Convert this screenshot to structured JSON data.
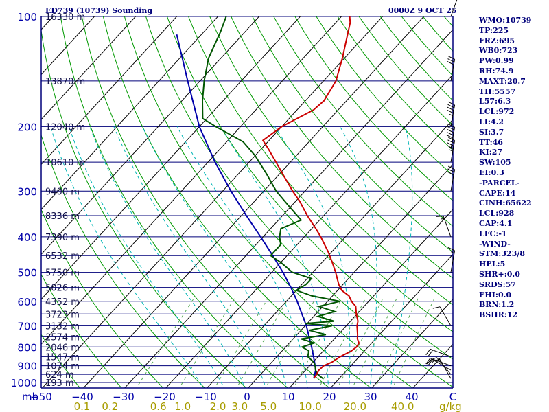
{
  "chart_data": {
    "type": "line",
    "title_left": "ED739 (10739) Sounding",
    "title_right": "0000Z  9 OCT 25",
    "pressure_axis_label": "mb",
    "pressure_ticks": [
      100,
      200,
      300,
      400,
      500,
      600,
      700,
      800,
      900,
      1000
    ],
    "temperature_ticks": [
      -50,
      -40,
      -30,
      -20,
      -10,
      0,
      10,
      20,
      30,
      40
    ],
    "mixing_ratio_unit": "g/kg",
    "mixing_ratio_ticks": [
      "0.1",
      "0.2",
      "0.6",
      "1.0",
      "2.0",
      "3.0",
      "5.0",
      "10.0",
      "20.0",
      "40.0"
    ],
    "height_labels": [
      {
        "p": 100,
        "label": "16330 m"
      },
      {
        "p": 150,
        "label": "13870 m"
      },
      {
        "p": 200,
        "label": "12040 m"
      },
      {
        "p": 250,
        "label": "10610 m"
      },
      {
        "p": 300,
        "label": "9400 m"
      },
      {
        "p": 350,
        "label": "8336 m"
      },
      {
        "p": 400,
        "label": "7390 m"
      },
      {
        "p": 450,
        "label": "6532 m"
      },
      {
        "p": 500,
        "label": "5750 m"
      },
      {
        "p": 550,
        "label": "5026 m"
      },
      {
        "p": 600,
        "label": "4352 m"
      },
      {
        "p": 650,
        "label": "3723 m"
      },
      {
        "p": 700,
        "label": "3132 m"
      },
      {
        "p": 750,
        "label": "2574 m"
      },
      {
        "p": 800,
        "label": "2046 m"
      },
      {
        "p": 850,
        "label": "1547 m"
      },
      {
        "p": 900,
        "label": "1074 m"
      },
      {
        "p": 950,
        "label": "624 m"
      },
      {
        "p": 1000,
        "label": "193 m"
      }
    ],
    "temperature_profile": [
      {
        "p": 975,
        "t": 13.8
      },
      {
        "p": 950,
        "t": 13.6
      },
      {
        "p": 925,
        "t": 13.2
      },
      {
        "p": 900,
        "t": 13.4
      },
      {
        "p": 880,
        "t": 14.6
      },
      {
        "p": 850,
        "t": 15.4
      },
      {
        "p": 820,
        "t": 16.8
      },
      {
        "p": 800,
        "t": 17.2
      },
      {
        "p": 780,
        "t": 16.9
      },
      {
        "p": 760,
        "t": 15.6
      },
      {
        "p": 740,
        "t": 14.7
      },
      {
        "p": 700,
        "t": 12.6
      },
      {
        "p": 680,
        "t": 11.8
      },
      {
        "p": 650,
        "t": 9.8
      },
      {
        "p": 620,
        "t": 8.0
      },
      {
        "p": 600,
        "t": 5.8
      },
      {
        "p": 580,
        "t": 4.0
      },
      {
        "p": 560,
        "t": 1.0
      },
      {
        "p": 540,
        "t": -1.0
      },
      {
        "p": 500,
        "t": -4.5
      },
      {
        "p": 470,
        "t": -7.5
      },
      {
        "p": 440,
        "t": -10.8
      },
      {
        "p": 400,
        "t": -16.0
      },
      {
        "p": 380,
        "t": -19.0
      },
      {
        "p": 350,
        "t": -24.0
      },
      {
        "p": 320,
        "t": -29.0
      },
      {
        "p": 300,
        "t": -33.0
      },
      {
        "p": 280,
        "t": -37.0
      },
      {
        "p": 250,
        "t": -43.5
      },
      {
        "p": 230,
        "t": -48.3
      },
      {
        "p": 218,
        "t": -51.5
      },
      {
        "p": 200,
        "t": -50.0
      },
      {
        "p": 180,
        "t": -46.0
      },
      {
        "p": 170,
        "t": -45.5
      },
      {
        "p": 150,
        "t": -47.0
      },
      {
        "p": 130,
        "t": -50.5
      },
      {
        "p": 110,
        "t": -55.0
      },
      {
        "p": 104,
        "t": -56.5
      },
      {
        "p": 100,
        "t": -58.0
      }
    ],
    "dewpoint_profile": [
      {
        "p": 975,
        "td": 16.0
      },
      {
        "p": 950,
        "td": 13.8
      },
      {
        "p": 925,
        "td": 12.4
      },
      {
        "p": 900,
        "td": 11.3
      },
      {
        "p": 880,
        "td": 10.2
      },
      {
        "p": 850,
        "td": 7.5
      },
      {
        "p": 820,
        "td": 6.5
      },
      {
        "p": 800,
        "td": 4.0
      },
      {
        "p": 780,
        "td": 6.0
      },
      {
        "p": 760,
        "td": 2.0
      },
      {
        "p": 740,
        "td": 7.0
      },
      {
        "p": 720,
        "td": 2.0
      },
      {
        "p": 700,
        "td": 6.5
      },
      {
        "p": 690,
        "td": -0.5
      },
      {
        "p": 680,
        "td": 6.0
      },
      {
        "p": 660,
        "td": 1.0
      },
      {
        "p": 640,
        "td": 4.0
      },
      {
        "p": 620,
        "td": -1.0
      },
      {
        "p": 600,
        "td": 3.0
      },
      {
        "p": 580,
        "td": -5.0
      },
      {
        "p": 560,
        "td": -10.0
      },
      {
        "p": 540,
        "td": -9.0
      },
      {
        "p": 520,
        "td": -9.0
      },
      {
        "p": 500,
        "td": -15.0
      },
      {
        "p": 470,
        "td": -20.0
      },
      {
        "p": 450,
        "td": -24.0
      },
      {
        "p": 420,
        "td": -24.0
      },
      {
        "p": 400,
        "td": -26.0
      },
      {
        "p": 380,
        "td": -27.5
      },
      {
        "p": 360,
        "td": -24.5
      },
      {
        "p": 330,
        "td": -30.5
      },
      {
        "p": 300,
        "td": -37.0
      },
      {
        "p": 270,
        "td": -43.0
      },
      {
        "p": 240,
        "td": -50.0
      },
      {
        "p": 220,
        "td": -56.0
      },
      {
        "p": 200,
        "td": -66.0
      },
      {
        "p": 190,
        "td": -71.0
      },
      {
        "p": 170,
        "td": -75.0
      },
      {
        "p": 150,
        "td": -79.0
      },
      {
        "p": 130,
        "td": -83.0
      },
      {
        "p": 110,
        "td": -86.0
      },
      {
        "p": 100,
        "td": -88.0
      }
    ],
    "parcel_profile": [
      {
        "p": 975,
        "t": 13.8
      },
      {
        "p": 928,
        "t": 12.5
      },
      {
        "p": 900,
        "t": 11.3
      },
      {
        "p": 850,
        "t": 8.9
      },
      {
        "p": 800,
        "t": 6.3
      },
      {
        "p": 750,
        "t": 3.4
      },
      {
        "p": 700,
        "t": 0.3
      },
      {
        "p": 650,
        "t": -3.4
      },
      {
        "p": 600,
        "t": -7.4
      },
      {
        "p": 550,
        "t": -12.0
      },
      {
        "p": 500,
        "t": -17.3
      },
      {
        "p": 450,
        "t": -23.5
      },
      {
        "p": 400,
        "t": -30.6
      },
      {
        "p": 350,
        "t": -38.8
      },
      {
        "p": 300,
        "t": -48.0
      },
      {
        "p": 250,
        "t": -58.3
      },
      {
        "p": 200,
        "t": -70.0
      },
      {
        "p": 150,
        "t": -83.0
      },
      {
        "p": 112,
        "t": -96.0
      }
    ],
    "wind_barbs": [
      {
        "p": 975,
        "dir": 330,
        "spd": 10
      },
      {
        "p": 950,
        "dir": 320,
        "spd": 10
      },
      {
        "p": 925,
        "dir": 300,
        "spd": 15
      },
      {
        "p": 900,
        "dir": 290,
        "spd": 20
      },
      {
        "p": 850,
        "dir": 290,
        "spd": 20
      },
      {
        "p": 700,
        "dir": 330,
        "spd": 10
      },
      {
        "p": 500,
        "dir": 10,
        "spd": 15
      },
      {
        "p": 400,
        "dir": 340,
        "spd": 15
      },
      {
        "p": 300,
        "dir": 10,
        "spd": 30
      },
      {
        "p": 250,
        "dir": 10,
        "spd": 45
      },
      {
        "p": 230,
        "dir": 10,
        "spd": 50
      },
      {
        "p": 200,
        "dir": 10,
        "spd": 45
      },
      {
        "p": 150,
        "dir": 10,
        "spd": 30
      },
      {
        "p": 100,
        "dir": 20,
        "spd": 20
      }
    ],
    "indices": [
      "WMO:10739",
      "TP:225",
      "FRZ:695",
      "WB0:723",
      "PW:0.99",
      "RH:74.9",
      "MAXT:20.7",
      "TH:5557",
      "L57:6.3",
      "LCL:972",
      "LI:4.2",
      "SI:3.7",
      "TT:46",
      "KI:27",
      "SW:105",
      "EI:0.3",
      "-PARCEL-",
      "CAPE:14",
      "CINH:65622",
      "LCL:928",
      "CAP:4.1",
      "LFC:-1",
      "-WIND-",
      "STM:323/8",
      "HEL:5",
      "SHR+:0.0",
      "SRDS:57",
      "EHI:0.0",
      "BRN:1.2",
      "BSHR:12"
    ],
    "colors": {
      "isobar": "#00007a",
      "isotherm": "#000000",
      "dry_adiabat": "#009900",
      "moist_adiabat": "#00b5b5",
      "mixing_ratio": "#55aa55",
      "temperature": "#cc0000",
      "dewpoint": "#005500",
      "parcel": "#0000aa",
      "tick_text": "#0000aa",
      "mixing_text": "#a89c00"
    }
  }
}
